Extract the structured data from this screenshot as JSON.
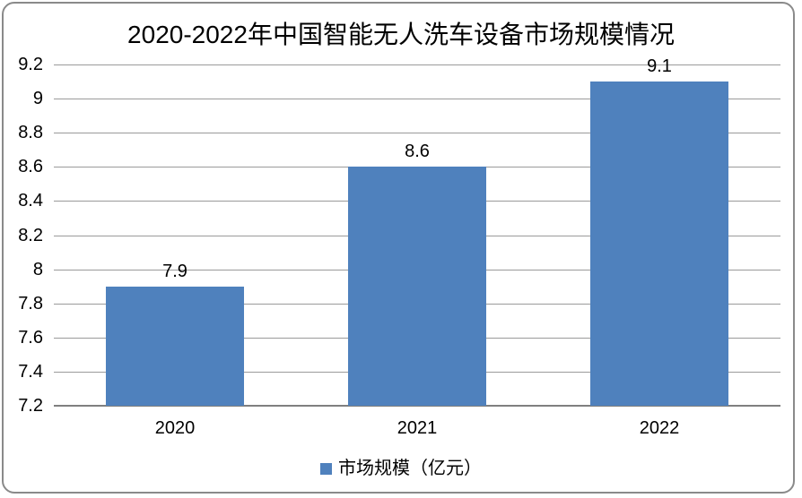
{
  "chart_data": {
    "type": "bar",
    "title": "2020-2022年中国智能无人洗车设备市场规模情况",
    "categories": [
      "2020",
      "2021",
      "2022"
    ],
    "series": [
      {
        "name": "市场规模（亿元）",
        "values": [
          7.9,
          8.6,
          9.1
        ]
      }
    ],
    "data_labels": [
      "7.9",
      "8.6",
      "9.1"
    ],
    "xlabel": "",
    "ylabel": "",
    "ylim": [
      7.2,
      9.2
    ],
    "ytick_step": 0.2,
    "ytick_labels": [
      "7.2",
      "7.4",
      "7.6",
      "7.8",
      "8",
      "8.2",
      "8.4",
      "8.6",
      "8.8",
      "9",
      "9.2"
    ],
    "grid": true,
    "legend_position": "bottom",
    "colors": {
      "bar": "#4F81BD",
      "gridline": "#9A9A9A",
      "axis_line": "#7F7F7F",
      "chart_border": "#8A8A8A",
      "text": "#000000",
      "background": "#FFFFFF"
    }
  }
}
